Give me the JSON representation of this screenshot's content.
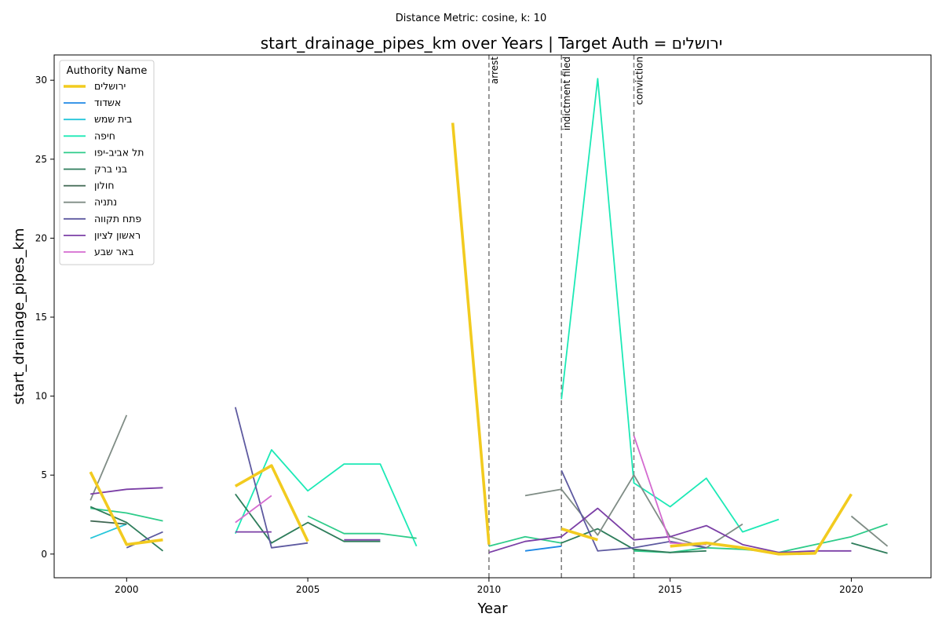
{
  "chart_data": {
    "type": "line",
    "suptitle": "Distance Metric: cosine, k: 10",
    "title": "start_drainage_pipes_km over Years | Target Auth = ירושלים",
    "xlabel": "Year",
    "ylabel": "start_drainage_pipes_km",
    "xlim": [
      1998,
      2022.2
    ],
    "ylim": [
      -1.5,
      31.6
    ],
    "xticks": [
      2000,
      2005,
      2010,
      2015,
      2020
    ],
    "yticks": [
      0,
      5,
      10,
      15,
      20,
      25,
      30
    ],
    "grid": false,
    "legend": {
      "title": "Authority Name",
      "placement": "upper-left"
    },
    "events": [
      {
        "x": 2010,
        "label": "arrest"
      },
      {
        "x": 2012,
        "label": "indictment filed"
      },
      {
        "x": 2014,
        "label": "conviction"
      }
    ],
    "series": [
      {
        "name": "ירושלים",
        "color": "#f2cb1f",
        "target": true,
        "points": [
          [
            1999,
            5.2
          ],
          [
            2000,
            0.6
          ],
          [
            2001,
            0.9
          ],
          null,
          [
            2003,
            4.3
          ],
          [
            2004,
            5.6
          ],
          [
            2005,
            0.8
          ],
          null,
          [
            2009,
            27.3
          ],
          [
            2010,
            0.6
          ],
          null,
          [
            2012,
            1.6
          ],
          [
            2013,
            0.9
          ],
          null,
          [
            2015,
            0.5
          ],
          [
            2016,
            0.7
          ],
          [
            2017,
            0.4
          ],
          [
            2018,
            0.0
          ],
          [
            2019,
            0.05
          ],
          [
            2020,
            3.8
          ]
        ]
      },
      {
        "name": "אשדוד",
        "color": "#1e88e5",
        "points": [
          [
            2011,
            0.2
          ],
          [
            2012,
            0.5
          ]
        ]
      },
      {
        "name": "בית שמש",
        "color": "#26c6da",
        "points": [
          [
            1999,
            1.0
          ],
          [
            2000,
            1.9
          ]
        ]
      },
      {
        "name": "חיפה",
        "color": "#1de9b6",
        "points": [
          [
            2003,
            1.3
          ],
          [
            2004,
            6.6
          ],
          [
            2005,
            4.0
          ],
          [
            2006,
            5.7
          ],
          [
            2007,
            5.7
          ],
          [
            2008,
            0.5
          ],
          null,
          [
            2012,
            9.8
          ],
          [
            2013,
            30.1
          ],
          [
            2014,
            4.5
          ],
          [
            2015,
            3.0
          ],
          [
            2016,
            4.8
          ],
          [
            2017,
            1.4
          ],
          [
            2018,
            2.2
          ]
        ]
      },
      {
        "name": "תל אביב-יפו",
        "color": "#2ecc8a",
        "points": [
          [
            1999,
            2.9
          ],
          [
            2000,
            2.6
          ],
          [
            2001,
            2.1
          ],
          null,
          [
            2005,
            2.4
          ],
          [
            2006,
            1.3
          ],
          [
            2007,
            1.3
          ],
          [
            2008,
            1.0
          ],
          null,
          [
            2010,
            0.5
          ],
          [
            2011,
            1.1
          ],
          [
            2012,
            0.7
          ],
          null,
          [
            2014,
            0.2
          ],
          [
            2015,
            0.1
          ],
          [
            2016,
            0.4
          ],
          [
            2017,
            0.3
          ],
          [
            2018,
            0.1
          ],
          [
            2019,
            0.6
          ],
          [
            2020,
            1.1
          ],
          [
            2021,
            1.9
          ]
        ]
      },
      {
        "name": "בני ברק",
        "color": "#2e7d5b",
        "points": [
          [
            1999,
            3.0
          ],
          [
            2000,
            2.0
          ],
          [
            2001,
            0.2
          ],
          null,
          [
            2003,
            3.8
          ],
          [
            2004,
            0.7
          ],
          [
            2005,
            2.0
          ],
          [
            2006,
            0.8
          ],
          [
            2007,
            0.8
          ],
          null,
          [
            2012,
            0.7
          ],
          [
            2013,
            1.6
          ],
          [
            2014,
            0.3
          ],
          [
            2015,
            0.1
          ],
          [
            2016,
            0.2
          ],
          null,
          [
            2020,
            0.7
          ],
          [
            2021,
            0.05
          ]
        ]
      },
      {
        "name": "חולון",
        "color": "#3e6651",
        "points": [
          [
            1999,
            2.1
          ],
          [
            2000,
            1.9
          ]
        ]
      },
      {
        "name": "נתניה",
        "color": "#7f8c85",
        "points": [
          [
            1999,
            3.4
          ],
          [
            2000,
            8.8
          ],
          null,
          [
            2011,
            3.7
          ],
          [
            2012,
            4.1
          ],
          [
            2013,
            1.2
          ],
          [
            2014,
            5.0
          ],
          [
            2015,
            1.1
          ],
          [
            2016,
            0.4
          ],
          [
            2017,
            1.9
          ],
          null,
          [
            2020,
            2.4
          ],
          [
            2021,
            0.5
          ]
        ]
      },
      {
        "name": "פתח תקווה",
        "color": "#5e5aa0",
        "points": [
          [
            2000,
            0.4
          ],
          [
            2001,
            1.4
          ],
          null,
          [
            2003,
            9.3
          ],
          [
            2004,
            0.4
          ],
          [
            2005,
            0.7
          ],
          null,
          [
            2012,
            5.3
          ],
          [
            2013,
            0.2
          ],
          [
            2014,
            0.4
          ],
          [
            2015,
            0.8
          ],
          [
            2016,
            0.4
          ]
        ]
      },
      {
        "name": "ראשון לציון",
        "color": "#7b3fa6",
        "points": [
          [
            1999,
            3.8
          ],
          [
            2000,
            4.1
          ],
          [
            2001,
            4.2
          ],
          null,
          [
            2003,
            1.4
          ],
          [
            2004,
            1.4
          ],
          null,
          [
            2006,
            0.9
          ],
          [
            2007,
            0.9
          ],
          null,
          [
            2010,
            0.1
          ],
          [
            2011,
            0.8
          ],
          [
            2012,
            1.1
          ],
          [
            2013,
            2.9
          ],
          [
            2014,
            0.9
          ],
          [
            2015,
            1.1
          ],
          [
            2016,
            1.8
          ],
          [
            2017,
            0.6
          ],
          [
            2018,
            0.1
          ],
          [
            2019,
            0.2
          ],
          [
            2020,
            0.2
          ]
        ]
      },
      {
        "name": "באר שבע",
        "color": "#d46bd0",
        "points": [
          [
            2003,
            2.0
          ],
          [
            2004,
            3.7
          ],
          null,
          [
            2014,
            7.5
          ],
          [
            2015,
            0.7
          ],
          [
            2016,
            0.6
          ]
        ]
      }
    ]
  }
}
